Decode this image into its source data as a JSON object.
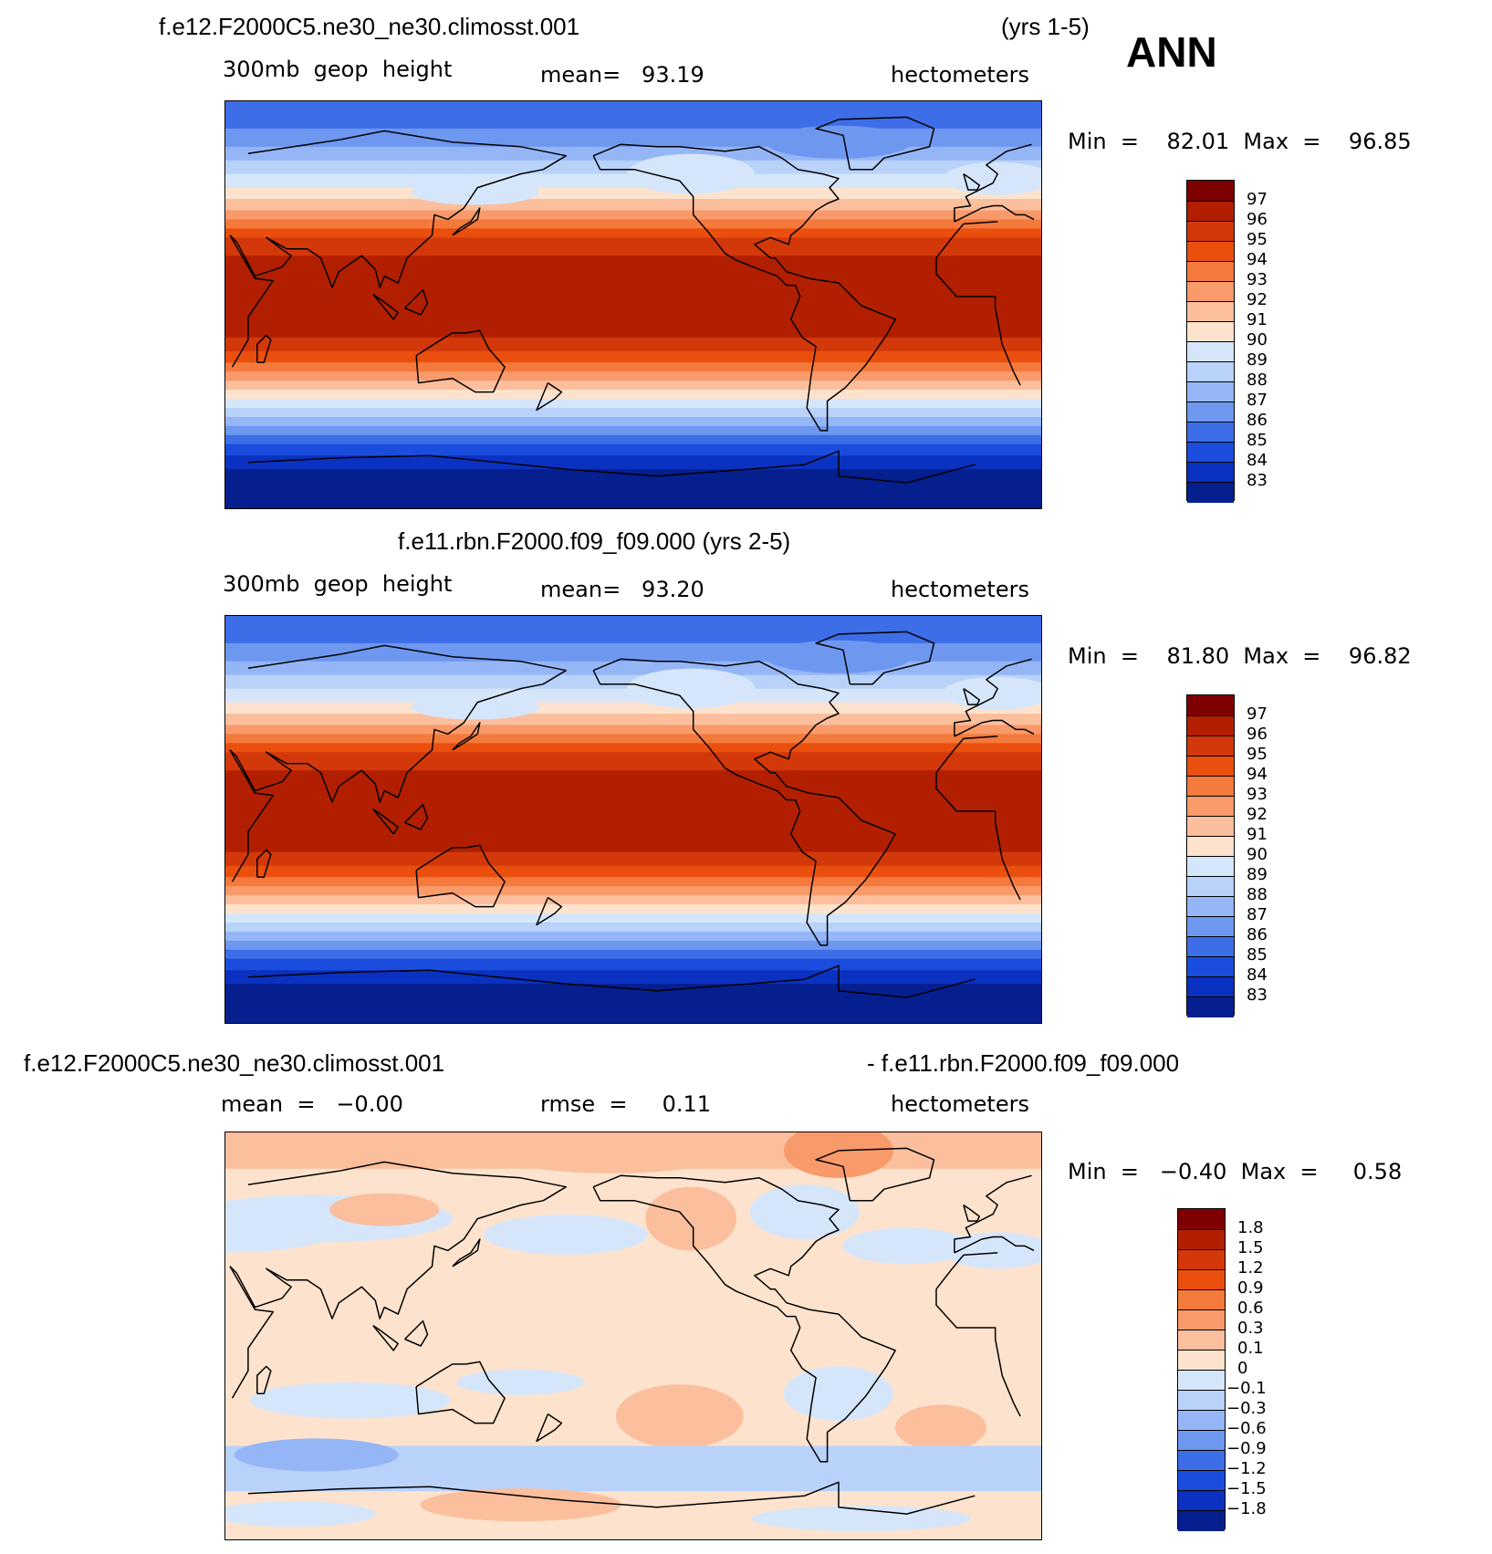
{
  "header": {
    "season": "ANN"
  },
  "panels": [
    {
      "title_left": "f.e12.F2000C5.ne30_ne30.climosst.001",
      "title_right": "(yrs 1-5)",
      "stat_left": "300mb  geop  height",
      "stat_mid": "mean=   93.19",
      "units": "hectometers",
      "minmax": "Min  =    82.01  Max  =    96.85",
      "levels": [
        "97",
        "96",
        "95",
        "94",
        "93",
        "92",
        "91",
        "90",
        "89",
        "88",
        "87",
        "86",
        "85",
        "84",
        "83"
      ],
      "colors": [
        "#7f0000",
        "#b21f00",
        "#d2380a",
        "#ea4f0e",
        "#f47a3c",
        "#f99a6a",
        "#fbbf9d",
        "#fde3cd",
        "#d6e6fa",
        "#b9d2fa",
        "#95b6f6",
        "#6e97f0",
        "#3d6ee8",
        "#1a4ddd",
        "#0a31c0",
        "#061f8f"
      ],
      "field": {
        "type": "geopotential_height",
        "band_order_north_to_south": [
          9,
          8,
          7,
          6,
          5,
          4,
          3,
          2,
          1,
          1,
          1,
          1,
          2,
          3,
          4,
          5,
          6,
          7,
          8,
          9,
          10,
          11,
          12,
          13,
          14,
          15
        ]
      }
    },
    {
      "title_center": "f.e11.rbn.F2000.f09_f09.000 (yrs 2-5)",
      "stat_left": "300mb  geop  height",
      "stat_mid": "mean=   93.20",
      "units": "hectometers",
      "minmax": "Min  =    81.80  Max  =    96.82",
      "levels": [
        "97",
        "96",
        "95",
        "94",
        "93",
        "92",
        "91",
        "90",
        "89",
        "88",
        "87",
        "86",
        "85",
        "84",
        "83"
      ],
      "colors": [
        "#7f0000",
        "#b21f00",
        "#d2380a",
        "#ea4f0e",
        "#f47a3c",
        "#f99a6a",
        "#fbbf9d",
        "#fde3cd",
        "#d6e6fa",
        "#b9d2fa",
        "#95b6f6",
        "#6e97f0",
        "#3d6ee8",
        "#1a4ddd",
        "#0a31c0",
        "#061f8f"
      ],
      "field": {
        "type": "geopotential_height"
      }
    },
    {
      "title_left": "f.e12.F2000C5.ne30_ne30.climosst.001",
      "title_right": "- f.e11.rbn.F2000.f09_f09.000",
      "stat_left": "mean  =   −0.00",
      "stat_mid": "rmse  =     0.11",
      "units": "hectometers",
      "minmax": "Min  =   −0.40  Max  =     0.58",
      "levels": [
        "1.8",
        "1.5",
        "1.2",
        "0.9",
        "0.6",
        "0.3",
        "0.1",
        "0",
        "−0.1",
        "−0.3",
        "−0.6",
        "−0.9",
        "−1.2",
        "−1.5",
        "−1.8"
      ],
      "colors": [
        "#7f0000",
        "#b21f00",
        "#d2380a",
        "#ea4f0e",
        "#f47a3c",
        "#f99a6a",
        "#fbbf9d",
        "#fde3cd",
        "#d6e6fa",
        "#b9d2fa",
        "#95b6f6",
        "#6e97f0",
        "#3d6ee8",
        "#1a4ddd",
        "#0a31c0",
        "#061f8f"
      ],
      "field": {
        "type": "difference",
        "background_color": "#fde3cd"
      }
    }
  ]
}
